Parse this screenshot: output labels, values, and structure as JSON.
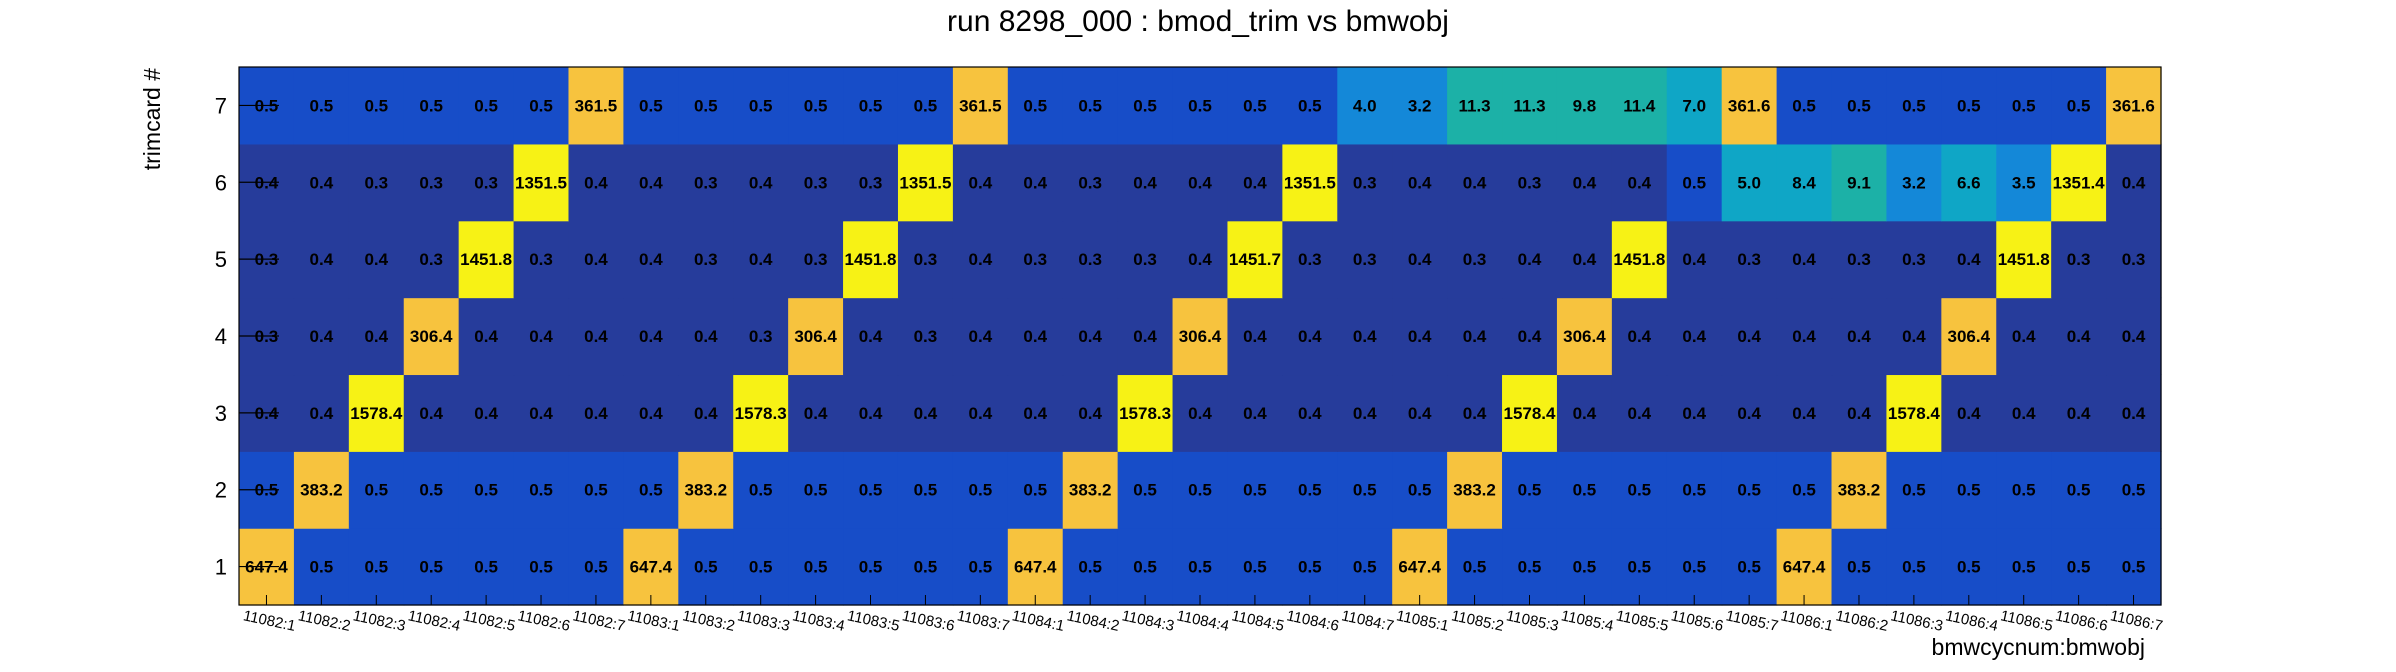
{
  "chart_data": {
    "type": "heatmap",
    "title": "run 8298_000 : bmod_trim vs bmwobj",
    "xlabel": "bmwcycnum:bmwobj",
    "ylabel": "trimcard #",
    "x_categories": [
      "11082:1",
      "11082:2",
      "11082:3",
      "11082:4",
      "11082:5",
      "11082:6",
      "11082:7",
      "11083:1",
      "11083:2",
      "11083:3",
      "11083:4",
      "11083:5",
      "11083:6",
      "11083:7",
      "11084:1",
      "11084:2",
      "11084:3",
      "11084:4",
      "11084:5",
      "11084:6",
      "11084:7",
      "11085:1",
      "11085:2",
      "11085:3",
      "11085:4",
      "11085:5",
      "11085:6",
      "11085:7",
      "11086:1",
      "11086:2",
      "11086:3",
      "11086:4",
      "11086:5",
      "11086:6",
      "11086:7"
    ],
    "y_categories": [
      "1",
      "2",
      "3",
      "4",
      "5",
      "6",
      "7"
    ],
    "values": [
      [
        647.4,
        0.5,
        0.5,
        0.5,
        0.5,
        0.5,
        0.5,
        647.4,
        0.5,
        0.5,
        0.5,
        0.5,
        0.5,
        0.5,
        647.4,
        0.5,
        0.5,
        0.5,
        0.5,
        0.5,
        0.5,
        647.4,
        0.5,
        0.5,
        0.5,
        0.5,
        0.5,
        0.5,
        647.4,
        0.5,
        0.5,
        0.5,
        0.5,
        0.5,
        0.5
      ],
      [
        0.5,
        383.2,
        0.5,
        0.5,
        0.5,
        0.5,
        0.5,
        0.5,
        383.2,
        0.5,
        0.5,
        0.5,
        0.5,
        0.5,
        0.5,
        383.2,
        0.5,
        0.5,
        0.5,
        0.5,
        0.5,
        0.5,
        383.2,
        0.5,
        0.5,
        0.5,
        0.5,
        0.5,
        0.5,
        383.2,
        0.5,
        0.5,
        0.5,
        0.5,
        0.5
      ],
      [
        0.4,
        0.4,
        1578.4,
        0.4,
        0.4,
        0.4,
        0.4,
        0.4,
        0.4,
        1578.3,
        0.4,
        0.4,
        0.4,
        0.4,
        0.4,
        0.4,
        1578.3,
        0.4,
        0.4,
        0.4,
        0.4,
        0.4,
        0.4,
        1578.4,
        0.4,
        0.4,
        0.4,
        0.4,
        0.4,
        0.4,
        1578.4,
        0.4,
        0.4,
        0.4,
        0.4
      ],
      [
        0.3,
        0.4,
        0.4,
        306.4,
        0.4,
        0.4,
        0.4,
        0.4,
        0.4,
        0.3,
        306.4,
        0.4,
        0.3,
        0.4,
        0.4,
        0.4,
        0.4,
        306.4,
        0.4,
        0.4,
        0.4,
        0.4,
        0.4,
        0.4,
        306.4,
        0.4,
        0.4,
        0.4,
        0.4,
        0.4,
        0.4,
        306.4,
        0.4,
        0.4,
        0.4
      ],
      [
        0.3,
        0.4,
        0.4,
        0.3,
        1451.8,
        0.3,
        0.4,
        0.4,
        0.3,
        0.4,
        0.3,
        1451.8,
        0.3,
        0.4,
        0.3,
        0.3,
        0.3,
        0.4,
        1451.7,
        0.3,
        0.3,
        0.4,
        0.3,
        0.4,
        0.4,
        1451.8,
        0.4,
        0.3,
        0.4,
        0.3,
        0.3,
        0.4,
        1451.8,
        0.3,
        0.3
      ],
      [
        0.4,
        0.4,
        0.3,
        0.3,
        0.3,
        1351.5,
        0.4,
        0.4,
        0.3,
        0.4,
        0.3,
        0.3,
        1351.5,
        0.4,
        0.4,
        0.3,
        0.4,
        0.4,
        0.4,
        1351.5,
        0.3,
        0.4,
        0.4,
        0.3,
        0.4,
        0.4,
        0.5,
        5.0,
        8.4,
        9.1,
        3.2,
        6.6,
        3.5,
        1351.4,
        0.4
      ],
      [
        0.5,
        0.5,
        0.5,
        0.5,
        0.5,
        0.5,
        361.5,
        0.5,
        0.5,
        0.5,
        0.5,
        0.5,
        0.5,
        361.5,
        0.5,
        0.5,
        0.5,
        0.5,
        0.5,
        0.5,
        4.0,
        3.2,
        11.3,
        11.3,
        9.8,
        11.4,
        7.0,
        361.6,
        0.5,
        0.5,
        0.5,
        0.5,
        0.5,
        0.5,
        361.6
      ]
    ],
    "y_tick_marks": true,
    "grid": false,
    "legend": "none",
    "colors": {
      "low": "#263c9b",
      "lowmid": "#174dc8",
      "mid_blue": "#1488d8",
      "teal": "#0fa6c6",
      "teal_green": "#1cb1a7",
      "orange": "#f7c33e",
      "yellow": "#f7f215"
    }
  }
}
